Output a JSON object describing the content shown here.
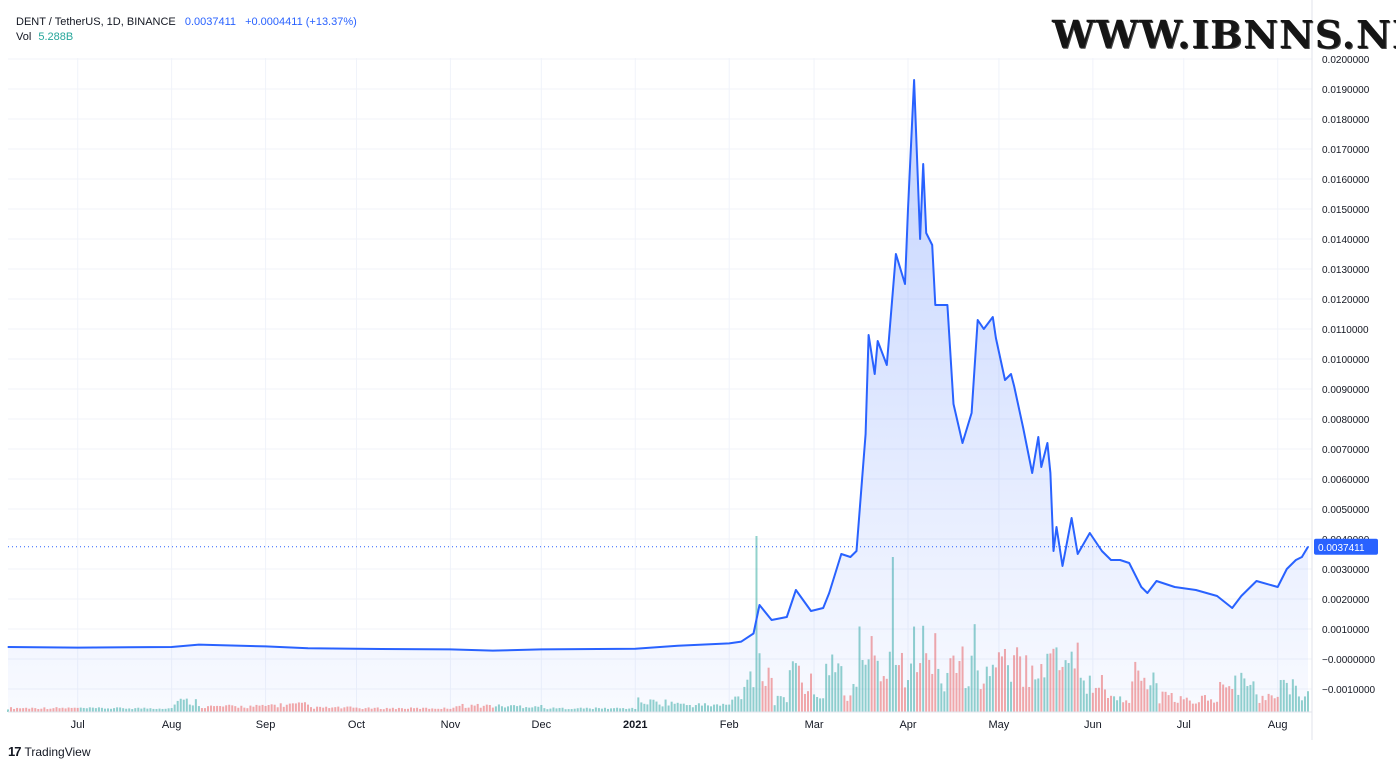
{
  "header": {
    "symbol": "DENT / TetherUS, 1D, BINANCE",
    "last_price": "0.0037411",
    "change": "+0.0004411 (+13.37%)",
    "volume_label": "Vol",
    "volume_value": "5.288B"
  },
  "watermark": "WWW.IBNNS.NET",
  "brand": {
    "logo": "17",
    "name": "TradingView"
  },
  "colors": {
    "line": "#2962ff",
    "fill": "#2962ff",
    "vol_up": "#26a69a",
    "vol_down": "#ef5350",
    "grid": "#f0f3fa"
  },
  "chart_data": {
    "type": "area",
    "price_axis_labels": [
      "0.0200000",
      "0.0190000",
      "0.0180000",
      "0.0170000",
      "0.0160000",
      "0.0150000",
      "0.0140000",
      "0.0130000",
      "0.0120000",
      "0.0110000",
      "0.0100000",
      "0.0090000",
      "0.0080000",
      "0.0070000",
      "0.0060000",
      "0.0050000",
      "0.0040000",
      "0.0030000",
      "0.0020000",
      "0.0010000",
      "−0.0000000",
      "−0.0010000"
    ],
    "time_axis_labels": [
      "Jul",
      "Aug",
      "Sep",
      "Oct",
      "Nov",
      "Dec",
      "2021",
      "Feb",
      "Mar",
      "Apr",
      "May",
      "Jun",
      "Jul",
      "Aug"
    ],
    "current_price_label": "0.0037411",
    "ylim": [
      -0.0012,
      0.0202
    ],
    "grid": true,
    "series": [
      {
        "x": [
          "2020-06-08",
          "2020-07-01",
          "2020-08-01",
          "2020-08-10",
          "2020-09-01",
          "2020-09-15",
          "2020-10-01",
          "2020-11-01",
          "2020-11-15",
          "2020-12-01",
          "2021-01-01",
          "2021-01-15",
          "2021-02-01",
          "2021-02-05",
          "2021-02-09",
          "2021-02-11",
          "2021-02-15",
          "2021-02-20",
          "2021-02-23",
          "2021-02-28",
          "2021-03-04",
          "2021-03-06",
          "2021-03-10",
          "2021-03-13",
          "2021-03-15",
          "2021-03-18",
          "2021-03-19",
          "2021-03-21",
          "2021-03-22",
          "2021-03-25",
          "2021-03-28",
          "2021-03-31",
          "2021-04-01",
          "2021-04-03",
          "2021-04-05",
          "2021-04-06",
          "2021-04-07",
          "2021-04-09",
          "2021-04-10",
          "2021-04-14",
          "2021-04-16",
          "2021-04-19",
          "2021-04-22",
          "2021-04-24",
          "2021-04-26",
          "2021-04-29",
          "2021-04-30",
          "2021-05-03",
          "2021-05-05",
          "2021-05-06",
          "2021-05-09",
          "2021-05-12",
          "2021-05-14",
          "2021-05-15",
          "2021-05-17",
          "2021-05-18",
          "2021-05-19",
          "2021-05-20",
          "2021-05-22",
          "2021-05-25",
          "2021-05-27",
          "2021-05-31",
          "2021-06-04",
          "2021-06-07",
          "2021-06-10",
          "2021-06-13",
          "2021-06-17",
          "2021-06-19",
          "2021-06-22",
          "2021-06-28",
          "2021-07-05",
          "2021-07-12",
          "2021-07-17",
          "2021-07-20",
          "2021-07-25",
          "2021-08-01",
          "2021-08-04",
          "2021-08-07",
          "2021-08-09",
          "2021-08-11"
        ],
        "y": [
          0.0004,
          0.00038,
          0.0004,
          0.00048,
          0.00042,
          0.00036,
          0.00034,
          0.00032,
          0.00028,
          0.00032,
          0.00034,
          0.00044,
          0.00052,
          0.00058,
          0.00085,
          0.0018,
          0.0013,
          0.0014,
          0.0023,
          0.0016,
          0.0017,
          0.0022,
          0.0035,
          0.0034,
          0.0036,
          0.0075,
          0.0108,
          0.0095,
          0.0106,
          0.0098,
          0.0135,
          0.0125,
          0.015,
          0.0193,
          0.014,
          0.0165,
          0.0142,
          0.0138,
          0.0118,
          0.0118,
          0.0085,
          0.0072,
          0.0082,
          0.0113,
          0.011,
          0.0114,
          0.0107,
          0.0093,
          0.0095,
          0.0091,
          0.0077,
          0.0062,
          0.0074,
          0.0064,
          0.0072,
          0.0062,
          0.0036,
          0.0044,
          0.0031,
          0.0047,
          0.0035,
          0.0042,
          0.0036,
          0.0033,
          0.0033,
          0.0032,
          0.0024,
          0.0022,
          0.0026,
          0.0024,
          0.0023,
          0.0021,
          0.0017,
          0.0021,
          0.0026,
          0.0024,
          0.003,
          0.0033,
          0.0034,
          0.0037411
        ]
      }
    ]
  }
}
